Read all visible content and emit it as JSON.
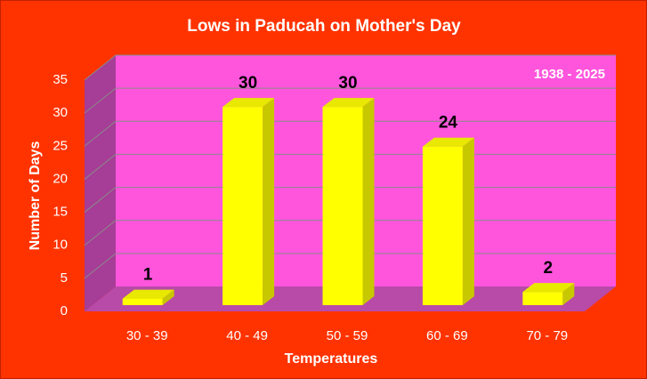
{
  "chart_data": {
    "type": "bar",
    "title": "Lows in Paducah on Mother's Day",
    "annotation": "1938 - 2025",
    "x_label": "Temperatures",
    "y_label": "Number of Days",
    "categories": [
      "30 - 39",
      "40 - 49",
      "50 - 59",
      "60 - 69",
      "70 - 79"
    ],
    "values": [
      1,
      30,
      30,
      24,
      2
    ],
    "color": "#ffff00",
    "ylim": [
      0,
      35
    ],
    "yticks": [
      0,
      5,
      10,
      15,
      20,
      25,
      30,
      35
    ],
    "grid": true
  }
}
